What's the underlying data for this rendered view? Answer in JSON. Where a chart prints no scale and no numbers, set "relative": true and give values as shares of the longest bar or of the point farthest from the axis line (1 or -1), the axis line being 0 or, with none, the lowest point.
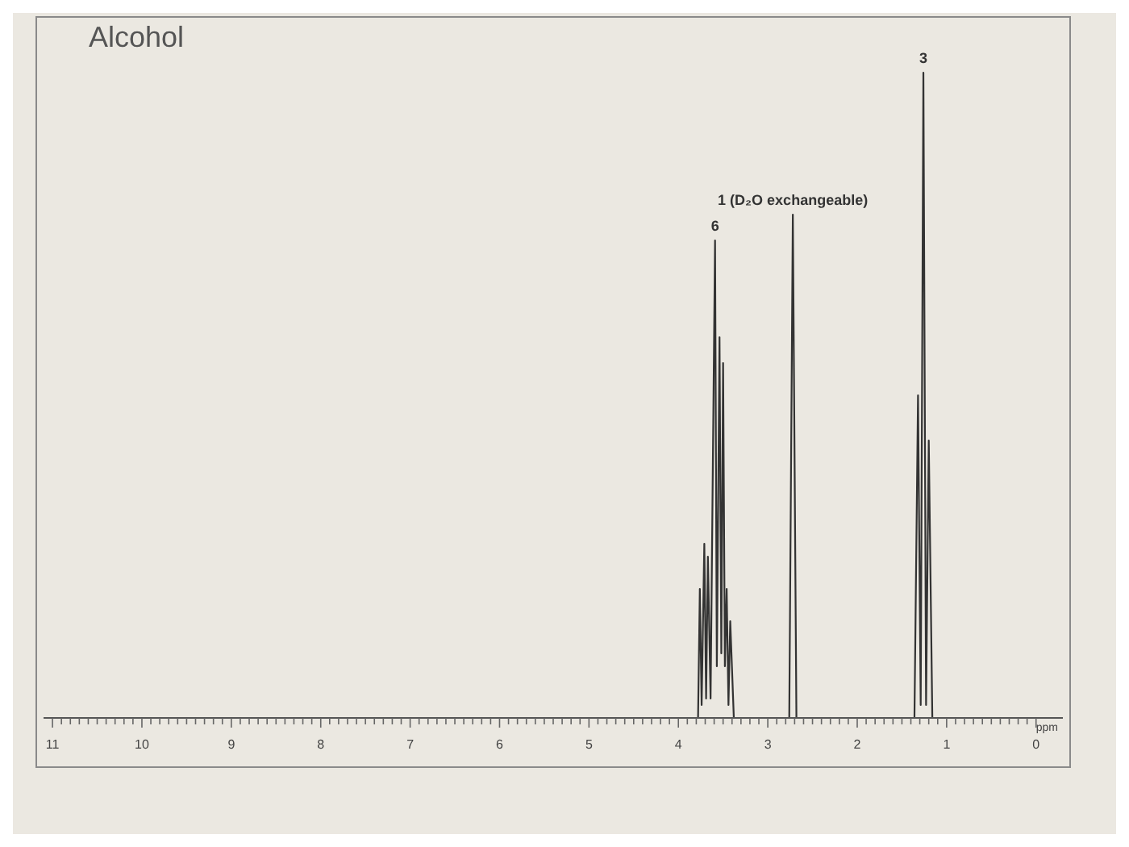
{
  "chart_data": {
    "type": "line",
    "title": "Alcohol",
    "xlabel": "ppm",
    "relative": true,
    "color": "#333333",
    "marker": "none",
    "x": [
      11.1,
      3.82,
      3.78,
      3.76,
      3.74,
      3.71,
      3.69,
      3.67,
      3.64,
      3.59,
      3.57,
      3.54,
      3.52,
      3.5,
      3.48,
      3.46,
      3.44,
      3.42,
      3.38,
      2.76,
      2.72,
      2.68,
      1.36,
      1.32,
      1.29,
      1.26,
      1.23,
      1.2,
      1.16,
      -0.3
    ],
    "values": [
      0,
      0,
      0,
      0.2,
      0.02,
      0.27,
      0.03,
      0.25,
      0.03,
      0.74,
      0.08,
      0.59,
      0.1,
      0.55,
      0.08,
      0.2,
      0.02,
      0.15,
      0,
      0,
      0.78,
      0,
      0,
      0.5,
      0.02,
      1,
      0.02,
      0.43,
      0,
      0
    ],
    "xlim": [
      11.1,
      -0.3
    ],
    "xticks": [
      11,
      {
        "value": 10.9,
        "label": null
      },
      {
        "value": 10.8,
        "label": null
      },
      {
        "value": 10.7,
        "label": null
      },
      {
        "value": 10.6,
        "label": null
      },
      {
        "value": 10.5,
        "label": null
      },
      {
        "value": 10.4,
        "label": null
      },
      {
        "value": 10.3,
        "label": null
      },
      {
        "value": 10.2,
        "label": null
      },
      {
        "value": 10.1,
        "label": null
      },
      10,
      {
        "value": 9.9,
        "label": null
      },
      {
        "value": 9.8,
        "label": null
      },
      {
        "value": 9.7,
        "label": null
      },
      {
        "value": 9.6,
        "label": null
      },
      {
        "value": 9.5,
        "label": null
      },
      {
        "value": 9.4,
        "label": null
      },
      {
        "value": 9.3,
        "label": null
      },
      {
        "value": 9.2,
        "label": null
      },
      {
        "value": 9.1,
        "label": null
      },
      9,
      {
        "value": 8.9,
        "label": null
      },
      {
        "value": 8.8,
        "label": null
      },
      {
        "value": 8.7,
        "label": null
      },
      {
        "value": 8.6,
        "label": null
      },
      {
        "value": 8.5,
        "label": null
      },
      {
        "value": 8.4,
        "label": null
      },
      {
        "value": 8.3,
        "label": null
      },
      {
        "value": 8.2,
        "label": null
      },
      {
        "value": 8.1,
        "label": null
      },
      8,
      {
        "value": 7.9,
        "label": null
      },
      {
        "value": 7.8,
        "label": null
      },
      {
        "value": 7.7,
        "label": null
      },
      {
        "value": 7.6,
        "label": null
      },
      {
        "value": 7.5,
        "label": null
      },
      {
        "value": 7.4,
        "label": null
      },
      {
        "value": 7.3,
        "label": null
      },
      {
        "value": 7.2,
        "label": null
      },
      {
        "value": 7.1,
        "label": null
      },
      7,
      {
        "value": 6.9,
        "label": null
      },
      {
        "value": 6.8,
        "label": null
      },
      {
        "value": 6.7,
        "label": null
      },
      {
        "value": 6.6,
        "label": null
      },
      {
        "value": 6.5,
        "label": null
      },
      {
        "value": 6.4,
        "label": null
      },
      {
        "value": 6.3,
        "label": null
      },
      {
        "value": 6.2,
        "label": null
      },
      {
        "value": 6.1,
        "label": null
      },
      6,
      {
        "value": 5.9,
        "label": null
      },
      {
        "value": 5.8,
        "label": null
      },
      {
        "value": 5.7,
        "label": null
      },
      {
        "value": 5.6,
        "label": null
      },
      {
        "value": 5.5,
        "label": null
      },
      {
        "value": 5.4,
        "label": null
      },
      {
        "value": 5.3,
        "label": null
      },
      {
        "value": 5.2,
        "label": null
      },
      {
        "value": 5.1,
        "label": null
      },
      5,
      {
        "value": 4.9,
        "label": null
      },
      {
        "value": 4.8,
        "label": null
      },
      {
        "value": 4.7,
        "label": null
      },
      {
        "value": 4.6,
        "label": null
      },
      {
        "value": 4.5,
        "label": null
      },
      {
        "value": 4.4,
        "label": null
      },
      {
        "value": 4.3,
        "label": null
      },
      {
        "value": 4.2,
        "label": null
      },
      {
        "value": 4.1,
        "label": null
      },
      4,
      {
        "value": 3.9,
        "label": null
      },
      {
        "value": 3.8,
        "label": null
      },
      {
        "value": 3.7,
        "label": null
      },
      {
        "value": 3.6,
        "label": null
      },
      {
        "value": 3.5,
        "label": null
      },
      {
        "value": 3.4,
        "label": null
      },
      {
        "value": 3.3,
        "label": null
      },
      {
        "value": 3.2,
        "label": null
      },
      {
        "value": 3.1,
        "label": null
      },
      3,
      {
        "value": 2.9,
        "label": null
      },
      {
        "value": 2.8,
        "label": null
      },
      {
        "value": 2.7,
        "label": null
      },
      {
        "value": 2.6,
        "label": null
      },
      {
        "value": 2.5,
        "label": null
      },
      {
        "value": 2.4,
        "label": null
      },
      {
        "value": 2.3,
        "label": null
      },
      {
        "value": 2.2,
        "label": null
      },
      {
        "value": 2.1,
        "label": null
      },
      2,
      {
        "value": 1.9,
        "label": null
      },
      {
        "value": 1.8,
        "label": null
      },
      {
        "value": 1.7,
        "label": null
      },
      {
        "value": 1.6,
        "label": null
      },
      {
        "value": 1.5,
        "label": null
      },
      {
        "value": 1.4,
        "label": null
      },
      {
        "value": 1.3,
        "label": null
      },
      {
        "value": 1.2,
        "label": null
      },
      {
        "value": 1.1,
        "label": null
      },
      1,
      {
        "value": 0.9,
        "label": null
      },
      {
        "value": 0.8,
        "label": null
      },
      {
        "value": 0.7,
        "label": null
      },
      {
        "value": 0.6,
        "label": null
      },
      {
        "value": 0.5,
        "label": null
      },
      {
        "value": 0.4,
        "label": null
      },
      {
        "value": 0.3,
        "label": null
      },
      {
        "value": 0.2,
        "label": null
      },
      {
        "value": 0.1,
        "label": null
      },
      0
    ],
    "annotations": [
      {
        "text": "6",
        "x": 3.59,
        "y": 0.74
      },
      {
        "text": "1 (D₂O exchangeable)",
        "x": 2.72,
        "y": 0.78
      },
      {
        "text": "3",
        "x": 1.26,
        "y": 1
      }
    ]
  }
}
